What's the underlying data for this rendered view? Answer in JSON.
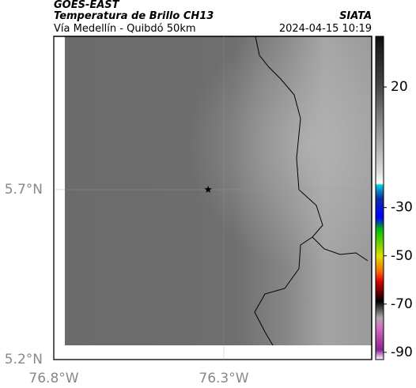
{
  "header": {
    "left_title": "GOES-EAST",
    "left_subtitle": "Temperatura de Brillo CH13",
    "left_caption": "Vía Medellín - Quibdó 50km",
    "right_title": "SIATA",
    "right_caption": "2024-04-15 10:19"
  },
  "map": {
    "xlim": [
      -76.8,
      -75.865
    ],
    "ylim": [
      5.2,
      6.151
    ],
    "xticks": [
      {
        "value": -76.8,
        "label": "76.8°W"
      },
      {
        "value": -76.3,
        "label": "76.3°W"
      }
    ],
    "yticks": [
      {
        "value": 5.7,
        "label": "5.7°N"
      },
      {
        "value": 5.2,
        "label": "5.2°N"
      }
    ],
    "marker": {
      "lon": -76.346,
      "lat": 5.7
    }
  },
  "colorbar": {
    "lim": [
      -93,
      41
    ],
    "ticks": [
      20,
      -30,
      -50,
      -70,
      -90
    ]
  }
}
